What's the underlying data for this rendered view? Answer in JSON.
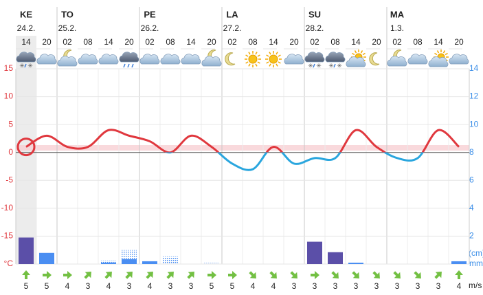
{
  "chart_data": {
    "type": "weather",
    "categories": [
      "14",
      "20",
      "02",
      "08",
      "14",
      "20",
      "02",
      "08",
      "14",
      "20",
      "02",
      "08",
      "14",
      "20",
      "02",
      "08",
      "14",
      "20",
      "02",
      "08",
      "14",
      "20"
    ],
    "day_labels": [
      "KE",
      null,
      "TO",
      null,
      null,
      null,
      "PE",
      null,
      null,
      null,
      "LA",
      null,
      null,
      null,
      "SU",
      null,
      null,
      null,
      "MA",
      null,
      null,
      null
    ],
    "date_labels": [
      "24.2.",
      null,
      "25.2.",
      null,
      null,
      null,
      "26.2.",
      null,
      null,
      null,
      "27.2.",
      null,
      null,
      null,
      "28.2.",
      null,
      null,
      null,
      "1.3.",
      null,
      null,
      null
    ],
    "symbols": [
      "sleet",
      "cloud",
      "cloud-moon",
      "cloud",
      "cloud",
      "rain",
      "cloud",
      "cloud",
      "cloud",
      "cloud-moon",
      "moon",
      "sun",
      "sun",
      "cloud",
      "sleet",
      "sleet",
      "cloud-sun",
      "moon",
      "cloud-moon",
      "cloud",
      "cloud-sun",
      "cloud"
    ],
    "temperature": [
      1,
      3,
      1,
      1,
      4,
      3,
      2,
      0,
      3,
      1,
      -2,
      -3,
      1,
      -2,
      -1,
      -1,
      4,
      1,
      -1,
      -1,
      4,
      1
    ],
    "warm_color": "#e0383e",
    "cold_color": "#2aa6de",
    "precipitation": [
      1.9,
      0.8,
      0,
      0,
      0.1,
      0.35,
      0.2,
      0,
      0,
      0,
      0,
      0,
      0,
      0,
      1.6,
      0.85,
      0.1,
      0,
      0,
      0,
      0,
      0.2
    ],
    "precipitation_max": [
      null,
      null,
      null,
      null,
      0.25,
      1.0,
      null,
      0.55,
      null,
      0.1,
      null,
      null,
      null,
      null,
      null,
      null,
      null,
      null,
      null,
      null,
      null,
      null
    ],
    "precipitation_colors": [
      "#5b4fa8",
      "#4a8ef2",
      "#4a8ef2",
      "#4a8ef2",
      "#4a8ef2",
      "#4a8ef2",
      "#4a8ef2",
      "#4a8ef2",
      "#4a8ef2",
      "#4a8ef2",
      "#4a8ef2",
      "#4a8ef2",
      "#4a8ef2",
      "#4a8ef2",
      "#5b4fa8",
      "#5b4fa8",
      "#4a8ef2",
      "#4a8ef2",
      "#4a8ef2",
      "#4a8ef2",
      "#4a8ef2",
      "#4a8ef2"
    ],
    "ylim": [
      -20,
      15
    ],
    "yticks": [
      {
        "value": -20,
        "label": "°C"
      },
      -15,
      -10,
      -5,
      0,
      5,
      10,
      15
    ],
    "y2lim": [
      0,
      14
    ],
    "y2ticks": [
      {
        "value": 0,
        "label": "mm"
      },
      2,
      4,
      6,
      8,
      10,
      12,
      14
    ],
    "y2_extra_label": "(cm)",
    "wind_speed": [
      5,
      5,
      4,
      3,
      4,
      3,
      4,
      3,
      3,
      5,
      5,
      4,
      4,
      3,
      3,
      3,
      3,
      3,
      3,
      3,
      3,
      4
    ],
    "wind_direction": [
      0,
      90,
      90,
      45,
      45,
      45,
      45,
      45,
      45,
      90,
      90,
      135,
      135,
      135,
      90,
      135,
      135,
      135,
      135,
      135,
      45,
      0
    ],
    "wind_unit": "m/s",
    "grid": true
  }
}
